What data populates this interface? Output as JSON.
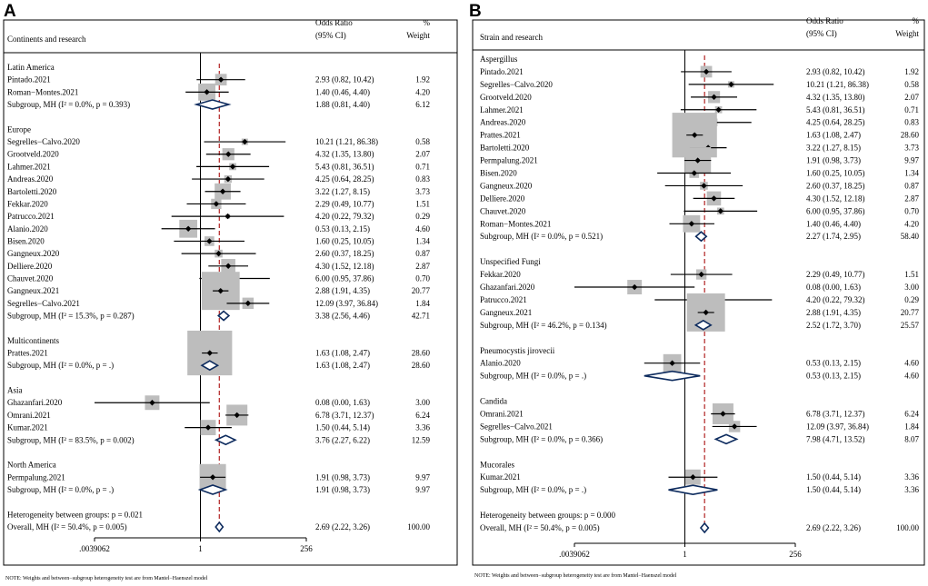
{
  "chart_data": [
    {
      "type": "forest",
      "panel": "A",
      "columns": {
        "study": "Continents and research",
        "or_line1": "Odds Ratio",
        "or_line2": "(95% CI)",
        "w_line1": "%",
        "w_line2": "Weight"
      },
      "x_axis": {
        "scale": "log2",
        "ticks": [
          ".0039062",
          "1",
          "256"
        ],
        "xlim": [
          0.0039062,
          256
        ]
      },
      "note": "NOTE: Weights and between−subgroup heterogeneity test are from Mantel−Haenszel model",
      "rows": [
        {
          "kind": "group",
          "label": "Latin America"
        },
        {
          "kind": "study",
          "label": "Pintado.2021",
          "or": 2.93,
          "lo": 0.82,
          "hi": 10.42,
          "ci": "2.93 (0.82, 10.42)",
          "weight": "1.92"
        },
        {
          "kind": "study",
          "label": "Roman−Montes.2021",
          "or": 1.4,
          "lo": 0.46,
          "hi": 4.4,
          "ci": "1.40 (0.46, 4.40)",
          "weight": "4.20"
        },
        {
          "kind": "subtotal",
          "label": "Subgroup, MH (I² = 0.0%, p = 0.393)",
          "or": 1.88,
          "lo": 0.81,
          "hi": 4.4,
          "ci": "1.88 (0.81, 4.40)",
          "weight": "6.12"
        },
        {
          "kind": "gap"
        },
        {
          "kind": "group",
          "label": "Europe"
        },
        {
          "kind": "study",
          "label": "Segrelles−Calvo.2020",
          "or": 10.21,
          "lo": 1.21,
          "hi": 86.38,
          "ci": "10.21 (1.21, 86.38)",
          "weight": "0.58"
        },
        {
          "kind": "study",
          "label": "Grootveld.2020",
          "or": 4.32,
          "lo": 1.35,
          "hi": 13.8,
          "ci": "4.32 (1.35, 13.80)",
          "weight": "2.07"
        },
        {
          "kind": "study",
          "label": "Lahmer.2021",
          "or": 5.43,
          "lo": 0.81,
          "hi": 36.51,
          "ci": "5.43 (0.81, 36.51)",
          "weight": "0.71"
        },
        {
          "kind": "study",
          "label": "Andreas.2020",
          "or": 4.25,
          "lo": 0.64,
          "hi": 28.25,
          "ci": "4.25 (0.64, 28.25)",
          "weight": "0.83"
        },
        {
          "kind": "study",
          "label": "Bartoletti.2020",
          "or": 3.22,
          "lo": 1.27,
          "hi": 8.15,
          "ci": "3.22 (1.27, 8.15)",
          "weight": "3.73"
        },
        {
          "kind": "study",
          "label": "Fekkar.2020",
          "or": 2.29,
          "lo": 0.49,
          "hi": 10.77,
          "ci": "2.29 (0.49, 10.77)",
          "weight": "1.51"
        },
        {
          "kind": "study",
          "label": "Patrucco.2021",
          "or": 4.2,
          "lo": 0.22,
          "hi": 79.32,
          "ci": "4.20 (0.22, 79.32)",
          "weight": "0.29"
        },
        {
          "kind": "study",
          "label": "Alanio.2020",
          "or": 0.53,
          "lo": 0.13,
          "hi": 2.15,
          "ci": "0.53 (0.13, 2.15)",
          "weight": "4.60"
        },
        {
          "kind": "study",
          "label": "Bisen.2020",
          "or": 1.6,
          "lo": 0.25,
          "hi": 10.05,
          "ci": "1.60 (0.25, 10.05)",
          "weight": "1.34"
        },
        {
          "kind": "study",
          "label": "Gangneux.2020",
          "or": 2.6,
          "lo": 0.37,
          "hi": 18.25,
          "ci": "2.60 (0.37, 18.25)",
          "weight": "0.87"
        },
        {
          "kind": "study",
          "label": "Delliere.2020",
          "or": 4.3,
          "lo": 1.52,
          "hi": 12.18,
          "ci": "4.30 (1.52, 12.18)",
          "weight": "2.87"
        },
        {
          "kind": "study",
          "label": "Chauvet.2020",
          "or": 6.0,
          "lo": 0.95,
          "hi": 37.86,
          "ci": "6.00 (0.95, 37.86)",
          "weight": "0.70"
        },
        {
          "kind": "study",
          "label": "Gangneux.2021",
          "or": 2.88,
          "lo": 1.91,
          "hi": 4.35,
          "ci": "2.88 (1.91, 4.35)",
          "weight": "20.77"
        },
        {
          "kind": "study",
          "label": "Segrelles−Calvo.2021",
          "or": 12.09,
          "lo": 3.97,
          "hi": 36.84,
          "ci": "12.09 (3.97, 36.84)",
          "weight": "1.84"
        },
        {
          "kind": "subtotal",
          "label": "Subgroup, MH (I² = 15.3%, p = 0.287)",
          "or": 3.38,
          "lo": 2.56,
          "hi": 4.46,
          "ci": "3.38 (2.56, 4.46)",
          "weight": "42.71"
        },
        {
          "kind": "gap"
        },
        {
          "kind": "group",
          "label": "Multicontinents"
        },
        {
          "kind": "study",
          "label": "Prattes.2021",
          "or": 1.63,
          "lo": 1.08,
          "hi": 2.47,
          "ci": "1.63 (1.08, 2.47)",
          "weight": "28.60"
        },
        {
          "kind": "subtotal",
          "label": "Subgroup, MH (I² = 0.0%, p = .)",
          "or": 1.63,
          "lo": 1.08,
          "hi": 2.47,
          "ci": "1.63 (1.08, 2.47)",
          "weight": "28.60"
        },
        {
          "kind": "gap"
        },
        {
          "kind": "group",
          "label": "Asia"
        },
        {
          "kind": "study",
          "label": "Ghazanfari.2020",
          "or": 0.08,
          "lo": 0.0,
          "hi": 1.63,
          "ci": "0.08 (0.00, 1.63)",
          "weight": "3.00"
        },
        {
          "kind": "study",
          "label": "Omrani.2021",
          "or": 6.78,
          "lo": 3.71,
          "hi": 12.37,
          "ci": "6.78 (3.71, 12.37)",
          "weight": "6.24"
        },
        {
          "kind": "study",
          "label": "Kumar.2021",
          "or": 1.5,
          "lo": 0.44,
          "hi": 5.14,
          "ci": "1.50 (0.44, 5.14)",
          "weight": "3.36"
        },
        {
          "kind": "subtotal",
          "label": "Subgroup, MH (I² = 83.5%, p = 0.002)",
          "or": 3.76,
          "lo": 2.27,
          "hi": 6.22,
          "ci": "3.76 (2.27, 6.22)",
          "weight": "12.59"
        },
        {
          "kind": "gap"
        },
        {
          "kind": "group",
          "label": "North America"
        },
        {
          "kind": "study",
          "label": "Permpalung.2021",
          "or": 1.91,
          "lo": 0.98,
          "hi": 3.73,
          "ci": "1.91 (0.98, 3.73)",
          "weight": "9.97"
        },
        {
          "kind": "subtotal",
          "label": "Subgroup, MH (I² = 0.0%, p = .)",
          "or": 1.91,
          "lo": 0.98,
          "hi": 3.73,
          "ci": "1.91 (0.98, 3.73)",
          "weight": "9.97"
        },
        {
          "kind": "gap"
        },
        {
          "kind": "text",
          "label": "Heterogeneity between groups: p = 0.021"
        },
        {
          "kind": "overall",
          "label": "Overall, MH (I² = 50.4%, p = 0.005)",
          "or": 2.69,
          "lo": 2.22,
          "hi": 3.26,
          "ci": "2.69 (2.22, 3.26)",
          "weight": "100.00"
        }
      ]
    },
    {
      "type": "forest",
      "panel": "B",
      "columns": {
        "study": "Strain and research",
        "or_line1": "Odds Ratio",
        "or_line2": "(95% CI)",
        "w_line1": "%",
        "w_line2": "Weight"
      },
      "x_axis": {
        "scale": "log2",
        "ticks": [
          ".0039062",
          "1",
          "256"
        ],
        "xlim": [
          0.0039062,
          256
        ]
      },
      "note": "NOTE: Weights and between−subgroup heterogeneity test are from Mantel−Haenszel model",
      "rows": [
        {
          "kind": "group",
          "label": "Aspergillus"
        },
        {
          "kind": "study",
          "label": "Pintado.2021",
          "or": 2.93,
          "lo": 0.82,
          "hi": 10.42,
          "ci": "2.93 (0.82, 10.42)",
          "weight": "1.92"
        },
        {
          "kind": "study",
          "label": "Segrelles−Calvo.2020",
          "or": 10.21,
          "lo": 1.21,
          "hi": 86.38,
          "ci": "10.21 (1.21, 86.38)",
          "weight": "0.58"
        },
        {
          "kind": "study",
          "label": "Grootveld.2020",
          "or": 4.32,
          "lo": 1.35,
          "hi": 13.8,
          "ci": "4.32 (1.35, 13.80)",
          "weight": "2.07"
        },
        {
          "kind": "study",
          "label": "Lahmer.2021",
          "or": 5.43,
          "lo": 0.81,
          "hi": 36.51,
          "ci": "5.43 (0.81, 36.51)",
          "weight": "0.71"
        },
        {
          "kind": "study",
          "label": "Andreas.2020",
          "or": 4.25,
          "lo": 0.64,
          "hi": 28.25,
          "ci": "4.25 (0.64, 28.25)",
          "weight": "0.83"
        },
        {
          "kind": "study",
          "label": "Prattes.2021",
          "or": 1.63,
          "lo": 1.08,
          "hi": 2.47,
          "ci": "1.63 (1.08, 2.47)",
          "weight": "28.60"
        },
        {
          "kind": "study",
          "label": "Bartoletti.2020",
          "or": 3.22,
          "lo": 1.27,
          "hi": 8.15,
          "ci": "3.22 (1.27, 8.15)",
          "weight": "3.73"
        },
        {
          "kind": "study",
          "label": "Permpalung.2021",
          "or": 1.91,
          "lo": 0.98,
          "hi": 3.73,
          "ci": "1.91 (0.98, 3.73)",
          "weight": "9.97"
        },
        {
          "kind": "study",
          "label": "Bisen.2020",
          "or": 1.6,
          "lo": 0.25,
          "hi": 10.05,
          "ci": "1.60 (0.25, 10.05)",
          "weight": "1.34"
        },
        {
          "kind": "study",
          "label": "Gangneux.2020",
          "or": 2.6,
          "lo": 0.37,
          "hi": 18.25,
          "ci": "2.60 (0.37, 18.25)",
          "weight": "0.87"
        },
        {
          "kind": "study",
          "label": "Delliere.2020",
          "or": 4.3,
          "lo": 1.52,
          "hi": 12.18,
          "ci": "4.30 (1.52, 12.18)",
          "weight": "2.87"
        },
        {
          "kind": "study",
          "label": "Chauvet.2020",
          "or": 6.0,
          "lo": 0.95,
          "hi": 37.86,
          "ci": "6.00 (0.95, 37.86)",
          "weight": "0.70"
        },
        {
          "kind": "study",
          "label": "Roman−Montes.2021",
          "or": 1.4,
          "lo": 0.46,
          "hi": 4.4,
          "ci": "1.40 (0.46, 4.40)",
          "weight": "4.20"
        },
        {
          "kind": "subtotal",
          "label": "Subgroup, MH (I² = 0.0%, p = 0.521)",
          "or": 2.27,
          "lo": 1.74,
          "hi": 2.95,
          "ci": "2.27 (1.74, 2.95)",
          "weight": "58.40"
        },
        {
          "kind": "gap"
        },
        {
          "kind": "group",
          "label": "Unspecified Fungi"
        },
        {
          "kind": "study",
          "label": "Fekkar.2020",
          "or": 2.29,
          "lo": 0.49,
          "hi": 10.77,
          "ci": "2.29 (0.49, 10.77)",
          "weight": "1.51"
        },
        {
          "kind": "study",
          "label": "Ghazanfari.2020",
          "or": 0.08,
          "lo": 0.0,
          "hi": 1.63,
          "ci": "0.08 (0.00, 1.63)",
          "weight": "3.00"
        },
        {
          "kind": "study",
          "label": "Patrucco.2021",
          "or": 4.2,
          "lo": 0.22,
          "hi": 79.32,
          "ci": "4.20 (0.22, 79.32)",
          "weight": "0.29"
        },
        {
          "kind": "study",
          "label": "Gangneux.2021",
          "or": 2.88,
          "lo": 1.91,
          "hi": 4.35,
          "ci": "2.88 (1.91, 4.35)",
          "weight": "20.77"
        },
        {
          "kind": "subtotal",
          "label": "Subgroup, MH (I² = 46.2%, p = 0.134)",
          "or": 2.52,
          "lo": 1.72,
          "hi": 3.7,
          "ci": "2.52 (1.72, 3.70)",
          "weight": "25.57"
        },
        {
          "kind": "gap"
        },
        {
          "kind": "group",
          "label": "Pneumocystis jirovecii"
        },
        {
          "kind": "study",
          "label": "Alanio.2020",
          "or": 0.53,
          "lo": 0.13,
          "hi": 2.15,
          "ci": "0.53 (0.13, 2.15)",
          "weight": "4.60"
        },
        {
          "kind": "subtotal",
          "label": "Subgroup, MH (I² = 0.0%, p = .)",
          "or": 0.53,
          "lo": 0.13,
          "hi": 2.15,
          "ci": "0.53 (0.13, 2.15)",
          "weight": "4.60"
        },
        {
          "kind": "gap"
        },
        {
          "kind": "group",
          "label": "Candida"
        },
        {
          "kind": "study",
          "label": "Omrani.2021",
          "or": 6.78,
          "lo": 3.71,
          "hi": 12.37,
          "ci": "6.78 (3.71, 12.37)",
          "weight": "6.24"
        },
        {
          "kind": "study",
          "label": "Segrelles−Calvo.2021",
          "or": 12.09,
          "lo": 3.97,
          "hi": 36.84,
          "ci": "12.09 (3.97, 36.84)",
          "weight": "1.84"
        },
        {
          "kind": "subtotal",
          "label": "Subgroup, MH (I² = 0.0%, p = 0.366)",
          "or": 7.98,
          "lo": 4.71,
          "hi": 13.52,
          "ci": "7.98 (4.71, 13.52)",
          "weight": "8.07"
        },
        {
          "kind": "gap"
        },
        {
          "kind": "group",
          "label": "Mucorales"
        },
        {
          "kind": "study",
          "label": "Kumar.2021",
          "or": 1.5,
          "lo": 0.44,
          "hi": 5.14,
          "ci": "1.50 (0.44, 5.14)",
          "weight": "3.36"
        },
        {
          "kind": "subtotal",
          "label": "Subgroup, MH (I² = 0.0%, p = .)",
          "or": 1.5,
          "lo": 0.44,
          "hi": 5.14,
          "ci": "1.50 (0.44, 5.14)",
          "weight": "3.36"
        },
        {
          "kind": "gap"
        },
        {
          "kind": "text",
          "label": "Heterogeneity between groups: p = 0.000"
        },
        {
          "kind": "overall",
          "label": "Overall, MH (I² = 50.4%, p = 0.005)",
          "or": 2.69,
          "lo": 2.22,
          "hi": 3.26,
          "ci": "2.69 (2.22, 3.26)",
          "weight": "100.00"
        }
      ]
    }
  ],
  "colors": {
    "box": "#bdbdbd",
    "point": "#000000",
    "diamond": "#0d2b5e",
    "ref_line": "#b22222",
    "frame": "#000000"
  }
}
